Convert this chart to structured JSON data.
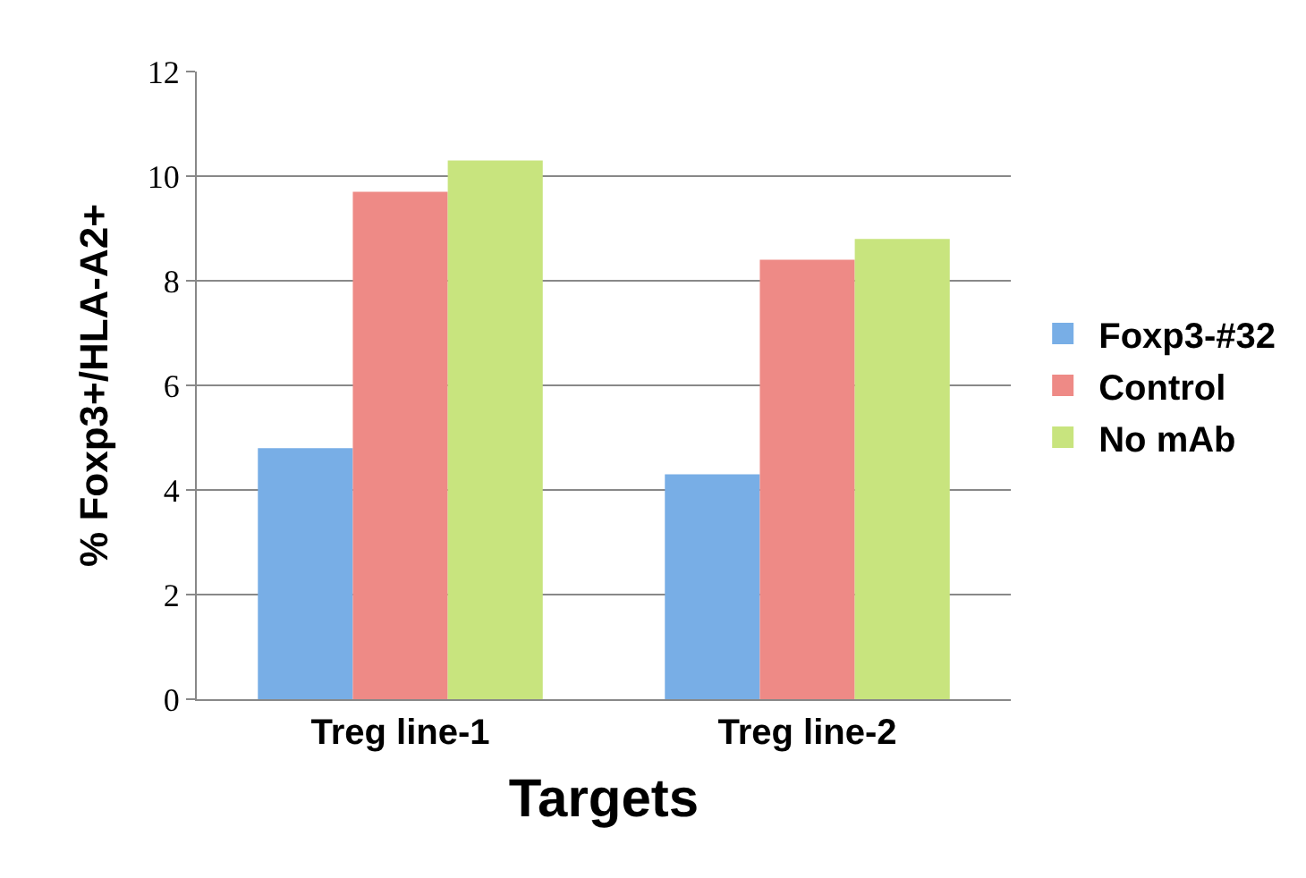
{
  "chart_data": {
    "type": "bar",
    "xlabel": "Targets",
    "ylabel": "% Foxp3+/HLA-A2+",
    "categories": [
      "Treg line-1",
      "Treg line-2"
    ],
    "series": [
      {
        "name": "Foxp3-#32",
        "color": "#78aee6",
        "values": [
          4.8,
          4.3
        ]
      },
      {
        "name": "Control",
        "color": "#ee8a86",
        "values": [
          9.7,
          8.4
        ]
      },
      {
        "name": "No mAb",
        "color": "#c8e47e",
        "values": [
          10.3,
          8.8
        ]
      }
    ],
    "ylim": [
      0,
      12
    ],
    "yticks": [
      0,
      2,
      4,
      6,
      8,
      10,
      12
    ],
    "grid": "y",
    "legend": "right"
  }
}
